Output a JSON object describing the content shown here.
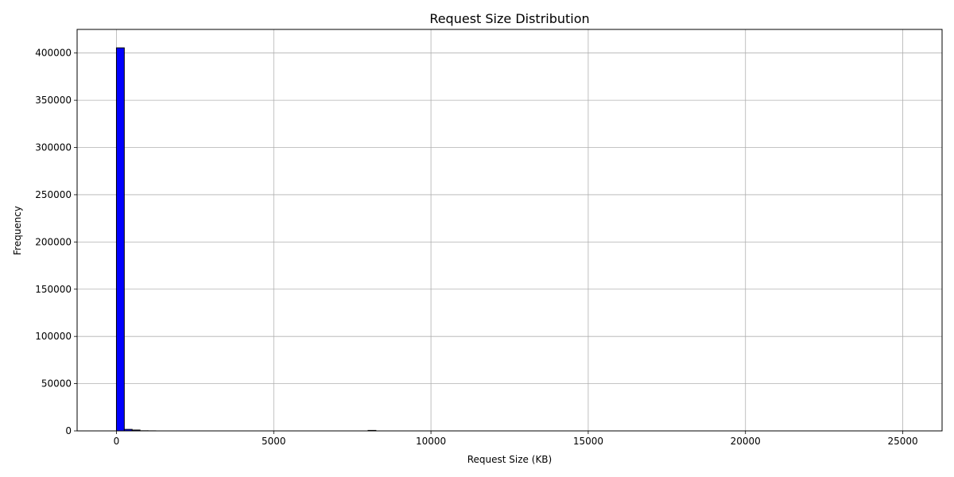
{
  "chart_data": {
    "type": "bar",
    "title": "Request Size Distribution",
    "xlabel": "Request Size (KB)",
    "ylabel": "Frequency",
    "xlim": [
      -1250,
      26250
    ],
    "ylim": [
      0,
      425000
    ],
    "xticks": [
      0,
      5000,
      10000,
      15000,
      20000,
      25000
    ],
    "yticks": [
      0,
      50000,
      100000,
      150000,
      200000,
      250000,
      300000,
      350000,
      400000
    ],
    "grid": true,
    "bar_color": "#0000ff",
    "edge_color": "#000000",
    "bins": [
      {
        "x0": 0,
        "x1": 250,
        "count": 405500
      },
      {
        "x0": 250,
        "x1": 500,
        "count": 1600
      },
      {
        "x0": 500,
        "x1": 750,
        "count": 900
      },
      {
        "x0": 750,
        "x1": 1000,
        "count": 150
      },
      {
        "x0": 1000,
        "x1": 1250,
        "count": 80
      },
      {
        "x0": 8000,
        "x1": 8250,
        "count": 500
      },
      {
        "x0": 24750,
        "x1": 25000,
        "count": 10
      }
    ]
  }
}
